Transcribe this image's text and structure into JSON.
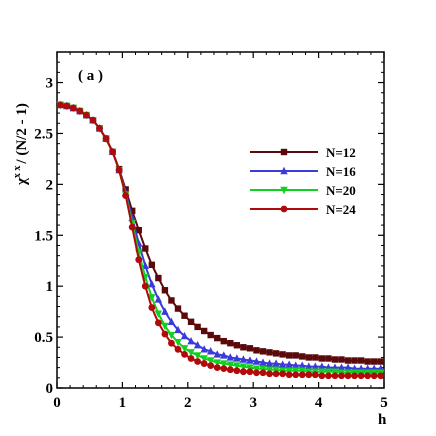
{
  "chart_data": {
    "type": "line",
    "annotation": "( a )",
    "xlabel": "h",
    "ylabel": "χ^{xx} / (N/2 - 1)",
    "ylabel_parts": {
      "chi": "χ",
      "sup": "x x",
      "rest": "/ (N/2 - 1)"
    },
    "xlim": [
      0,
      5
    ],
    "ylim": [
      0,
      3.3
    ],
    "xticks": [
      0,
      1,
      2,
      3,
      4,
      5
    ],
    "xtick_labels": [
      "0",
      "1",
      "2",
      "3",
      "4",
      "5"
    ],
    "yticks": [
      0,
      0.5,
      1,
      1.5,
      2,
      2.5,
      3
    ],
    "ytick_labels": [
      "0",
      "0.5",
      "1",
      "1.5",
      "2",
      "2.5",
      "3"
    ],
    "grid": false,
    "legend_position": "center-right",
    "x": [
      0.05,
      0.15,
      0.25,
      0.35,
      0.45,
      0.55,
      0.65,
      0.75,
      0.85,
      0.95,
      1.05,
      1.15,
      1.25,
      1.35,
      1.45,
      1.55,
      1.65,
      1.75,
      1.85,
      1.95,
      2.05,
      2.15,
      2.25,
      2.35,
      2.45,
      2.55,
      2.65,
      2.75,
      2.85,
      2.95,
      3.05,
      3.15,
      3.25,
      3.35,
      3.45,
      3.55,
      3.65,
      3.75,
      3.85,
      3.95,
      4.05,
      4.15,
      4.25,
      4.35,
      4.45,
      4.55,
      4.65,
      4.75,
      4.85,
      4.95
    ],
    "series": [
      {
        "name": "N=12",
        "color": "#5a0a0a",
        "marker": "square",
        "values": [
          2.78,
          2.77,
          2.75,
          2.72,
          2.68,
          2.63,
          2.55,
          2.45,
          2.32,
          2.15,
          1.95,
          1.74,
          1.55,
          1.37,
          1.21,
          1.08,
          0.96,
          0.86,
          0.78,
          0.71,
          0.65,
          0.6,
          0.56,
          0.52,
          0.49,
          0.46,
          0.44,
          0.42,
          0.4,
          0.39,
          0.37,
          0.36,
          0.35,
          0.34,
          0.33,
          0.32,
          0.32,
          0.31,
          0.3,
          0.3,
          0.29,
          0.29,
          0.28,
          0.28,
          0.27,
          0.27,
          0.27,
          0.26,
          0.26,
          0.26
        ]
      },
      {
        "name": "N=16",
        "color": "#3b3bdc",
        "marker": "triangle-up",
        "values": [
          2.78,
          2.77,
          2.75,
          2.72,
          2.68,
          2.63,
          2.55,
          2.45,
          2.32,
          2.14,
          1.92,
          1.67,
          1.42,
          1.2,
          1.02,
          0.87,
          0.75,
          0.65,
          0.57,
          0.51,
          0.46,
          0.42,
          0.38,
          0.36,
          0.33,
          0.32,
          0.3,
          0.29,
          0.28,
          0.27,
          0.26,
          0.25,
          0.24,
          0.24,
          0.23,
          0.23,
          0.22,
          0.22,
          0.21,
          0.21,
          0.21,
          0.2,
          0.2,
          0.2,
          0.2,
          0.19,
          0.19,
          0.19,
          0.19,
          0.19
        ]
      },
      {
        "name": "N=20",
        "color": "#10d020",
        "marker": "triangle-down",
        "values": [
          2.78,
          2.77,
          2.75,
          2.72,
          2.68,
          2.63,
          2.55,
          2.45,
          2.32,
          2.14,
          1.9,
          1.62,
          1.33,
          1.09,
          0.89,
          0.73,
          0.61,
          0.52,
          0.45,
          0.39,
          0.35,
          0.32,
          0.29,
          0.27,
          0.25,
          0.24,
          0.23,
          0.22,
          0.21,
          0.2,
          0.19,
          0.19,
          0.18,
          0.18,
          0.17,
          0.17,
          0.17,
          0.17,
          0.16,
          0.16,
          0.16,
          0.16,
          0.16,
          0.15,
          0.15,
          0.15,
          0.15,
          0.15,
          0.15,
          0.15
        ]
      },
      {
        "name": "N=24",
        "color": "#b00a0a",
        "marker": "circle",
        "values": [
          2.78,
          2.77,
          2.75,
          2.72,
          2.68,
          2.63,
          2.55,
          2.45,
          2.32,
          2.14,
          1.89,
          1.58,
          1.26,
          1.0,
          0.79,
          0.64,
          0.53,
          0.44,
          0.38,
          0.33,
          0.29,
          0.26,
          0.24,
          0.22,
          0.2,
          0.19,
          0.18,
          0.17,
          0.16,
          0.16,
          0.15,
          0.15,
          0.14,
          0.14,
          0.14,
          0.13,
          0.13,
          0.13,
          0.13,
          0.13,
          0.12,
          0.12,
          0.12,
          0.12,
          0.12,
          0.12,
          0.12,
          0.12,
          0.12,
          0.12
        ]
      }
    ]
  }
}
